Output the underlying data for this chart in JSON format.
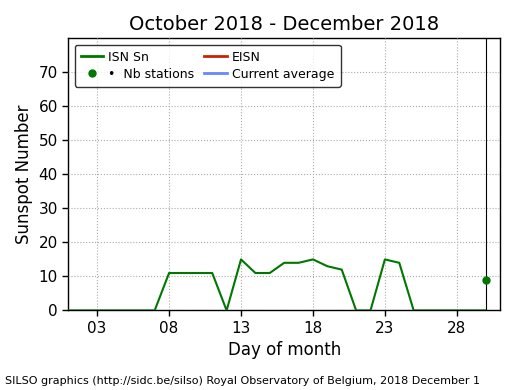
{
  "title": "October 2018 - December 2018",
  "xlabel": "Day of month",
  "ylabel": "Sunspot Number",
  "footer": "SILSO graphics (http://sidc.be/silso) Royal Observatory of Belgium, 2018 December 1",
  "xlim": [
    1,
    31
  ],
  "ylim": [
    0,
    80
  ],
  "xticks": [
    3,
    8,
    13,
    18,
    23,
    28
  ],
  "yticks": [
    0,
    10,
    20,
    30,
    40,
    50,
    60,
    70
  ],
  "isnsn_x": [
    1,
    2,
    3,
    4,
    5,
    6,
    7,
    8,
    9,
    10,
    11,
    12,
    13,
    14,
    15,
    16,
    17,
    18,
    19,
    20,
    21,
    22,
    23,
    24,
    25,
    26,
    27,
    28,
    29,
    30
  ],
  "isnsn_y": [
    0,
    0,
    0,
    0,
    0,
    0,
    0,
    11,
    11,
    11,
    11,
    0,
    15,
    11,
    11,
    14,
    14,
    15,
    13,
    12,
    0,
    0,
    15,
    14,
    0,
    0,
    0,
    0,
    0,
    0
  ],
  "nb_dot_x": [
    30
  ],
  "nb_dot_y": [
    9
  ],
  "vertical_line_x": 30,
  "green_color": "#007700",
  "red_color": "#cc2200",
  "blue_color": "#6688ff",
  "bg_color": "#ffffff",
  "plot_bg_color": "#ffffff",
  "grid_color": "#aaaaaa",
  "title_fontsize": 14,
  "label_fontsize": 12,
  "tick_fontsize": 11,
  "footer_fontsize": 8
}
